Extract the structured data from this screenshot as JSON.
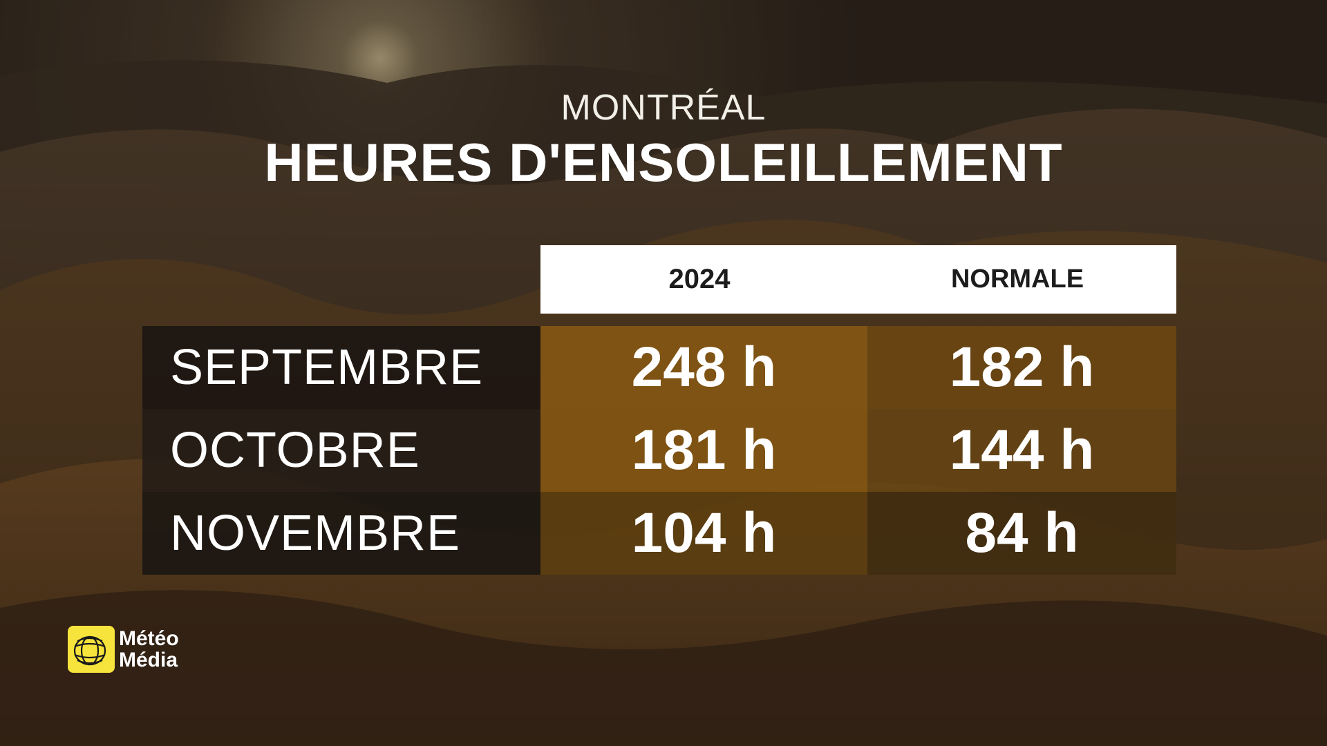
{
  "header": {
    "city": "MONTRÉAL",
    "title": "HEURES D'ENSOLEILLEMENT"
  },
  "chart_data": {
    "type": "table",
    "title": "HEURES D'ENSOLEILLEMENT",
    "subtitle": "MONTRÉAL",
    "columns": [
      "2024",
      "NORMALE"
    ],
    "rows": [
      {
        "month": "SEPTEMBRE",
        "v2024": "248 h",
        "normale": "182 h"
      },
      {
        "month": "OCTOBRE",
        "v2024": "181 h",
        "normale": "144 h"
      },
      {
        "month": "NOVEMBRE",
        "v2024": "104 h",
        "normale": "84 h"
      }
    ],
    "values_2024": [
      248,
      181,
      104
    ],
    "values_normale": [
      182,
      144,
      84
    ],
    "unit": "h"
  },
  "colors": {
    "header_bg": "#ffffff",
    "header_text": "#1c1c1c",
    "month_cell_bg": "rgba(18,16,16,0.78)",
    "col_2024_bright": "#8a5c14",
    "col_2024_dim": "#5a3d10",
    "col_normale_bright": "#6e4a14",
    "col_normale_dim": "#3e2c10",
    "logo_yellow": "#f6e43c"
  },
  "logo": {
    "line1": "Météo",
    "line2": "Média",
    "icon": "globe-icon"
  }
}
